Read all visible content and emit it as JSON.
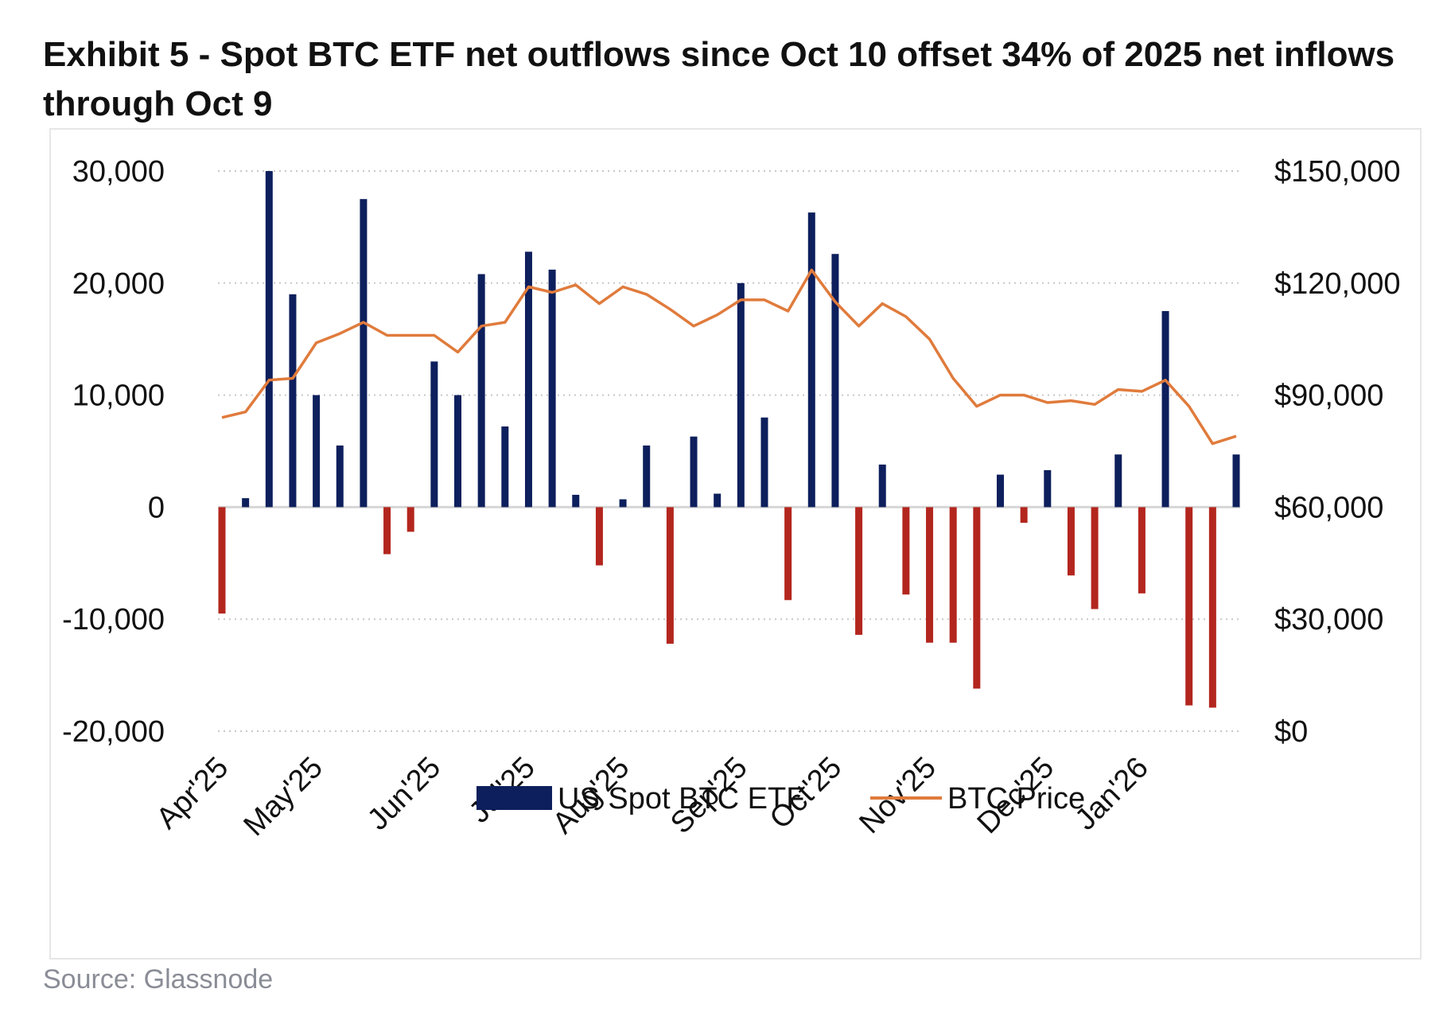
{
  "title": "Exhibit 5 - Spot BTC ETF net outflows since Oct 10 offset 34% of 2025 net inflows through Oct 9",
  "source": "Source: Glassnode",
  "colors": {
    "inflow": "#0d1f5c",
    "outflow": "#b3261e",
    "price": "#e07b3c",
    "grid": "#c8c8c8",
    "zero": "#d6d6d6"
  },
  "chart_data": {
    "type": "bar",
    "ylim_left": [
      -20000,
      30000
    ],
    "ylim_right": [
      0,
      150000
    ],
    "yticks_left": [
      "30,000",
      "20,000",
      "10,000",
      "0",
      "-10,000",
      "-20,000"
    ],
    "yticks_right": [
      "$150,000",
      "$120,000",
      "$90,000",
      "$60,000",
      "$30,000",
      "$0"
    ],
    "x_ticks": [
      "Apr'25",
      "May'25",
      "Jun'25",
      "Jul'25",
      "Aug'25",
      "Sep'25",
      "Oct'25",
      "Nov'25",
      "Dec'25",
      "Jan'26"
    ],
    "x_tick_index": [
      0,
      4,
      9,
      13,
      17,
      22,
      26,
      30,
      35,
      39
    ],
    "grid": true,
    "legend_position": "bottom-center",
    "series": [
      {
        "name": "US Spot BTC ETF",
        "kind": "bar",
        "values": [
          -9500,
          800,
          30000,
          19000,
          10000,
          5500,
          27500,
          -4200,
          -2200,
          13000,
          10000,
          20800,
          7200,
          22800,
          21200,
          1100,
          -5200,
          700,
          5500,
          -12200,
          6300,
          1200,
          20000,
          8000,
          -8300,
          26300,
          22600,
          -11400,
          3800,
          -7800,
          -12100,
          -12100,
          -16200,
          2900,
          -1400,
          3300,
          -6100,
          -9100,
          4700,
          -7700,
          17500,
          -17700,
          -17900,
          4700
        ]
      },
      {
        "name": "BTC Price",
        "kind": "line",
        "values": [
          84000,
          85500,
          94000,
          94500,
          104000,
          106500,
          109500,
          106000,
          106000,
          106000,
          101500,
          108500,
          109500,
          119000,
          117500,
          119500,
          114500,
          119000,
          117000,
          113000,
          108500,
          111500,
          115500,
          115500,
          112500,
          123500,
          115000,
          108500,
          114500,
          111000,
          105000,
          94500,
          87000,
          90000,
          90000,
          88000,
          88500,
          87500,
          91500,
          91000,
          94000,
          87000,
          77000,
          79000
        ]
      }
    ]
  }
}
